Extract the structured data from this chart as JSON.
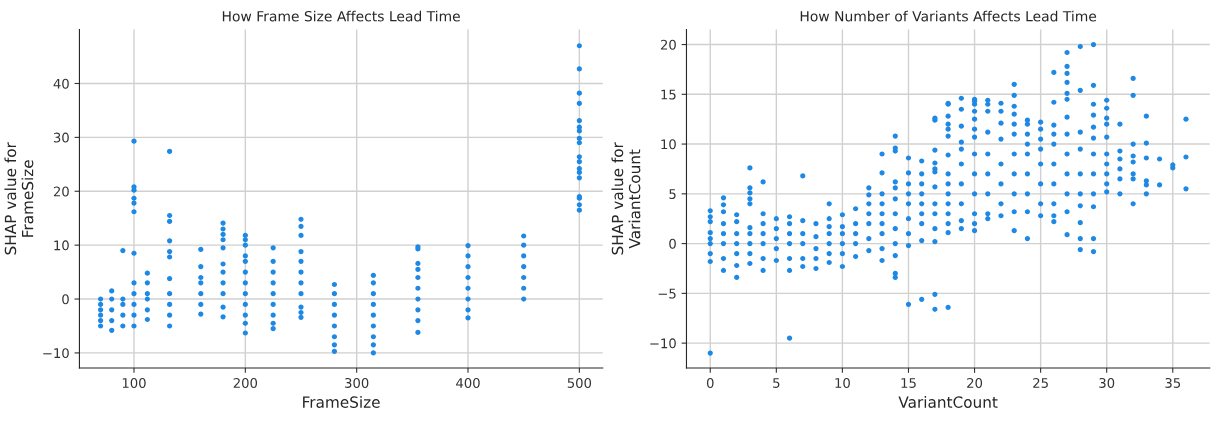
{
  "chart_data": [
    {
      "type": "scatter",
      "title": "How Frame Size Affects Lead Time",
      "xlabel": "FrameSize",
      "ylabel": "SHAP value for\nFrameSize",
      "xlim": [
        51,
        521
      ],
      "xticks": [
        100,
        200,
        300,
        400,
        500
      ],
      "ylim": [
        -12.8,
        50
      ],
      "yticks": [
        -10,
        0,
        10,
        20,
        30,
        40
      ],
      "grid": true,
      "marker": "circle",
      "series": [
        {
          "color": "#1e88e5",
          "x": [
            70,
            70,
            70,
            70,
            70,
            70,
            80,
            80,
            80,
            80,
            80,
            90,
            90,
            90,
            90,
            90,
            100,
            100,
            100,
            100,
            100,
            100,
            100,
            100,
            100,
            100,
            100,
            100,
            112,
            112,
            112,
            112,
            112,
            112,
            132,
            132,
            132,
            132,
            132,
            132,
            132,
            132,
            132,
            132,
            132,
            160,
            160,
            160,
            160,
            160,
            160,
            160,
            180,
            180,
            180,
            180,
            180,
            180,
            180,
            180,
            180,
            180,
            180,
            200,
            200,
            200,
            200,
            200,
            200,
            200,
            200,
            200,
            200,
            200,
            200,
            225,
            225,
            225,
            225,
            225,
            225,
            225,
            225,
            225,
            250,
            250,
            250,
            250,
            250,
            250,
            250,
            250,
            250,
            250,
            250,
            280,
            280,
            280,
            280,
            280,
            280,
            280,
            280,
            315,
            315,
            315,
            315,
            315,
            315,
            315,
            315,
            315,
            355,
            355,
            355,
            355,
            355,
            355,
            355,
            355,
            355,
            355,
            400,
            400,
            400,
            400,
            400,
            400,
            400,
            400,
            450,
            450,
            450,
            450,
            450,
            450,
            450,
            500,
            500,
            500,
            500,
            500,
            500,
            500,
            500,
            500,
            500,
            500,
            500,
            500,
            500,
            500,
            500,
            500,
            500
          ],
          "values": [
            -5,
            -4,
            -3,
            -2,
            -1,
            0,
            -5.8,
            -4,
            -2,
            0,
            1.5,
            -5,
            -3,
            -1,
            0,
            9,
            -5,
            -3,
            -1,
            1,
            3,
            8.5,
            16.2,
            17.8,
            18.7,
            20.2,
            20.8,
            29.3,
            -3.8,
            -2,
            0,
            1,
            3,
            4.8,
            -5,
            -3,
            -1,
            1,
            3.8,
            7.8,
            8.8,
            10.8,
            14.4,
            15.5,
            27.4,
            -2.8,
            -1,
            1,
            3,
            4,
            6,
            9.2,
            -3.3,
            -1.5,
            1,
            3,
            5,
            6.5,
            9.5,
            11,
            12,
            13,
            14.1,
            -6.3,
            -4.5,
            -3,
            -1,
            1,
            3,
            5,
            7,
            8,
            10,
            11,
            11.8,
            -5.5,
            -4.5,
            -3,
            -1,
            1,
            3,
            5,
            7,
            9.5,
            -3.4,
            -2.5,
            -1.5,
            1,
            3,
            5,
            7,
            8.8,
            11.8,
            13.5,
            14.8,
            -9.7,
            -8.5,
            -7,
            -5,
            -3,
            -1,
            1,
            2.7,
            -10,
            -8.5,
            -7,
            -5,
            -3,
            -1,
            1,
            3,
            4.4,
            -6.2,
            -4,
            -2,
            0,
            2,
            4,
            5.5,
            6.6,
            9.3,
            9.7,
            -3.5,
            -2,
            0,
            2,
            4,
            6,
            8,
            9.9,
            0,
            2,
            4,
            6,
            8,
            10,
            11.7,
            16.5,
            17.5,
            18.7,
            19,
            22.5,
            23.5,
            24.2,
            25.5,
            26.4,
            29,
            29.8,
            31.2,
            31.9,
            33.1,
            36.3,
            38.2,
            42.7,
            47
          ]
        }
      ]
    },
    {
      "type": "scatter",
      "title": "How Number of Variants Affects Lead Time",
      "xlabel": "VariantCount",
      "ylabel": "SHAP value for\nVariantCount",
      "xlim": [
        -1.8,
        37.8
      ],
      "xticks": [
        0,
        5,
        10,
        15,
        20,
        25,
        30,
        35
      ],
      "ylim": [
        -12.5,
        21.5
      ],
      "yticks": [
        -10,
        -5,
        0,
        5,
        10,
        15,
        20
      ],
      "grid": true,
      "marker": "circle",
      "series": [
        {
          "color": "#1e88e5",
          "x": [
            0,
            0,
            0,
            0,
            0,
            0,
            0,
            0,
            0,
            1,
            1,
            1,
            1,
            1,
            1,
            1,
            1,
            2,
            2,
            2,
            2,
            2,
            2,
            2,
            3,
            3,
            3,
            3,
            3,
            3,
            3,
            3,
            3,
            3,
            4,
            4,
            4,
            4,
            4,
            4,
            4,
            5,
            5,
            5,
            5,
            5,
            6,
            6,
            6,
            6,
            6,
            6,
            6,
            7,
            7,
            7,
            7,
            7,
            7,
            8,
            8,
            8,
            8,
            8,
            9,
            9,
            9,
            9,
            9,
            9,
            9,
            10,
            10,
            10,
            10,
            10,
            10,
            11,
            11,
            11,
            11,
            11,
            12,
            12,
            12,
            12,
            12,
            12,
            12,
            13,
            13,
            13,
            13,
            13,
            13,
            13,
            13,
            13,
            14,
            14,
            14,
            14,
            14,
            14,
            14,
            14,
            14,
            14,
            14,
            14,
            15,
            15,
            15,
            15,
            15,
            15,
            15,
            15,
            15,
            16,
            16,
            16,
            16,
            16,
            16,
            16,
            16,
            16,
            17,
            17,
            17,
            17,
            17,
            17,
            17,
            17,
            17,
            17,
            17,
            17,
            17,
            18,
            18,
            18,
            18,
            18,
            18,
            18,
            18,
            18,
            18,
            18,
            18,
            18,
            18,
            18,
            19,
            19,
            19,
            19,
            19,
            19,
            19,
            19,
            19,
            19,
            20,
            20,
            20,
            20,
            20,
            20,
            20,
            20,
            20,
            20,
            20,
            20,
            20,
            21,
            21,
            21,
            21,
            21,
            21,
            21,
            21,
            21,
            22,
            22,
            22,
            22,
            22,
            22,
            22,
            22,
            23,
            23,
            23,
            23,
            23,
            23,
            23,
            23,
            23,
            23,
            23,
            24,
            24,
            24,
            24,
            24,
            24,
            24,
            24,
            24,
            25,
            25,
            25,
            25,
            25,
            25,
            25,
            25,
            26,
            26,
            26,
            26,
            26,
            26,
            26,
            26,
            26,
            26,
            27,
            27,
            27,
            27,
            27,
            27,
            27,
            27,
            27,
            27,
            27,
            27,
            27,
            28,
            28,
            28,
            28,
            28,
            28,
            28,
            28,
            28,
            28,
            29,
            29,
            29,
            29,
            29,
            29,
            29,
            29,
            29,
            29,
            29,
            29,
            30,
            30,
            30,
            30,
            30,
            30,
            30,
            30,
            30,
            30,
            31,
            31,
            31,
            31,
            31,
            31,
            32,
            32,
            32,
            32,
            32,
            32,
            32,
            32,
            33,
            33,
            33,
            33,
            33,
            33,
            34,
            34,
            35,
            35,
            36,
            36,
            36
          ],
          "values": [
            -11,
            -1.8,
            -1,
            0,
            0.5,
            1.1,
            2.2,
            2.7,
            3.3,
            -2.7,
            -1.5,
            0,
            1,
            2,
            3.2,
            3.9,
            4.6,
            -3.4,
            -2.2,
            -1,
            0,
            1,
            2.2,
            2.9,
            -2,
            -1,
            0,
            1,
            1.6,
            4,
            4.5,
            5.1,
            5.6,
            7.6,
            -2.7,
            -1.5,
            0,
            1,
            2,
            3,
            6.2,
            -1.7,
            -0.5,
            0.5,
            1.5,
            2.5,
            -9.5,
            -2.7,
            -1.5,
            0,
            1,
            2,
            2.7,
            -2.3,
            -1.5,
            0,
            1,
            2.3,
            6.8,
            -2.5,
            -1.5,
            -0.5,
            0.7,
            2,
            -1.9,
            -1,
            0,
            1,
            1.7,
            2.5,
            4,
            -2.3,
            -1,
            0,
            1,
            1.7,
            2.9,
            -1.3,
            0,
            1,
            2,
            3.5,
            -0.7,
            0.5,
            2,
            3,
            4,
            4.9,
            5.6,
            -1.7,
            -0.5,
            1,
            2,
            3,
            4,
            5,
            7.1,
            9,
            -3.4,
            -3,
            -1.2,
            0,
            1.5,
            3,
            4.5,
            5.6,
            6.2,
            9.3,
            9.6,
            10.8,
            -6.1,
            -0.2,
            1,
            2.5,
            4,
            5,
            6,
            7.1,
            8.6,
            -5.6,
            0.3,
            2,
            3,
            4,
            5,
            6,
            7,
            8.3,
            -6.6,
            -5.1,
            0.2,
            1.5,
            3,
            4,
            5.7,
            7.2,
            7.5,
            8.1,
            9.4,
            12.4,
            12.6,
            -6.4,
            1.1,
            2,
            3,
            4,
            5,
            6,
            7,
            8.9,
            10.8,
            11.5,
            12,
            12.8,
            14,
            14.1,
            1.5,
            2.3,
            4,
            6,
            8,
            9.5,
            10.2,
            11.8,
            13.5,
            14.6,
            1.3,
            2,
            3,
            5,
            7,
            9,
            10.7,
            11.5,
            12.5,
            13.3,
            14,
            14.3,
            14.5,
            2.5,
            3,
            5,
            7,
            9,
            11.2,
            13.3,
            14,
            14.4,
            2.8,
            4,
            6,
            8,
            10.5,
            12.1,
            13.3,
            14.1,
            1.3,
            3.2,
            5,
            7,
            9,
            11,
            12,
            13,
            13.8,
            14.9,
            16,
            0.5,
            3.2,
            5,
            7,
            9,
            10,
            11,
            12,
            12.4,
            2.8,
            4,
            6,
            8,
            9.5,
            10.5,
            11.5,
            12.2,
            2.2,
            2.8,
            4,
            6,
            8,
            10,
            11,
            11.9,
            14.2,
            17.2,
            0.9,
            3.2,
            5,
            7,
            9,
            11,
            12.7,
            14.5,
            15.1,
            16.2,
            17.1,
            17.8,
            19.2,
            -0.6,
            0.5,
            2.1,
            3.8,
            5,
            7,
            9.5,
            11.2,
            15.4,
            19.8,
            -0.8,
            0.5,
            3.7,
            5,
            7,
            9,
            10.6,
            11.7,
            12.9,
            14,
            15.9,
            20,
            5.2,
            6,
            7,
            8,
            9,
            10.7,
            12,
            12.6,
            13.6,
            14.4,
            5,
            6.5,
            7.5,
            8.5,
            9.3,
            12,
            4,
            6.5,
            7,
            8.2,
            8.8,
            10,
            14.9,
            16.6,
            5,
            5.9,
            6.3,
            8.6,
            10.1,
            12.8,
            5.9,
            8.5,
            7.6,
            7.9,
            5.5,
            8.7,
            12.5
          ]
        }
      ]
    }
  ]
}
